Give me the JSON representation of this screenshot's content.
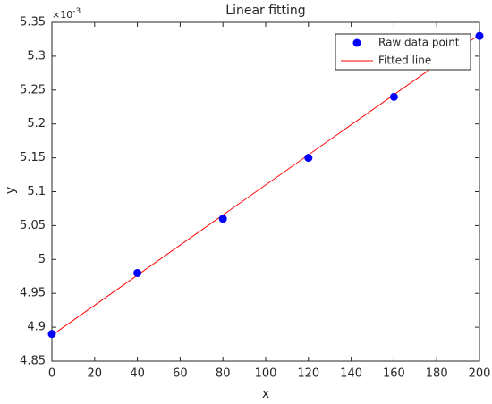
{
  "chart_data": {
    "type": "scatter",
    "title": "Linear fitting",
    "x_label": "x",
    "y_label": "y",
    "y_scale_label": {
      "base": "×10",
      "exponent": "-3"
    },
    "xlim": [
      0,
      200
    ],
    "ylim": [
      4.85,
      5.35
    ],
    "xticks": [
      0,
      20,
      40,
      60,
      80,
      100,
      120,
      140,
      160,
      180,
      200
    ],
    "yticks": [
      4.85,
      4.9,
      4.95,
      5,
      5.05,
      5.1,
      5.15,
      5.2,
      5.25,
      5.3,
      5.35
    ],
    "grid": false,
    "legend": "top-right",
    "series": [
      {
        "name": "Raw data point",
        "style": "marker",
        "color": "#0000ff",
        "x": [
          0,
          40,
          80,
          120,
          160,
          200
        ],
        "values": [
          4.89,
          4.98,
          5.06,
          5.15,
          5.24,
          5.33
        ]
      },
      {
        "name": "Fitted line",
        "style": "line",
        "color": "#ff0000",
        "x": [
          0,
          200
        ],
        "values": [
          4.888,
          5.332
        ]
      }
    ]
  }
}
